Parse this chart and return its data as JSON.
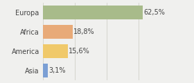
{
  "categories": [
    "Europa",
    "Africa",
    "America",
    "Asia"
  ],
  "values": [
    62.5,
    18.8,
    15.6,
    3.1
  ],
  "labels": [
    "62,5%",
    "18,8%",
    "15,6%",
    "3,1%"
  ],
  "bar_colors": [
    "#a8bb8a",
    "#e8aa78",
    "#f0c96a",
    "#7b9fd4"
  ],
  "background_color": "#f0f0ee",
  "xlim": [
    0,
    80
  ],
  "bar_height": 0.7,
  "label_fontsize": 7.0,
  "tick_fontsize": 7.0,
  "grid_color": "#d0d0c8",
  "grid_ticks": [
    0,
    20,
    40,
    60,
    80
  ]
}
